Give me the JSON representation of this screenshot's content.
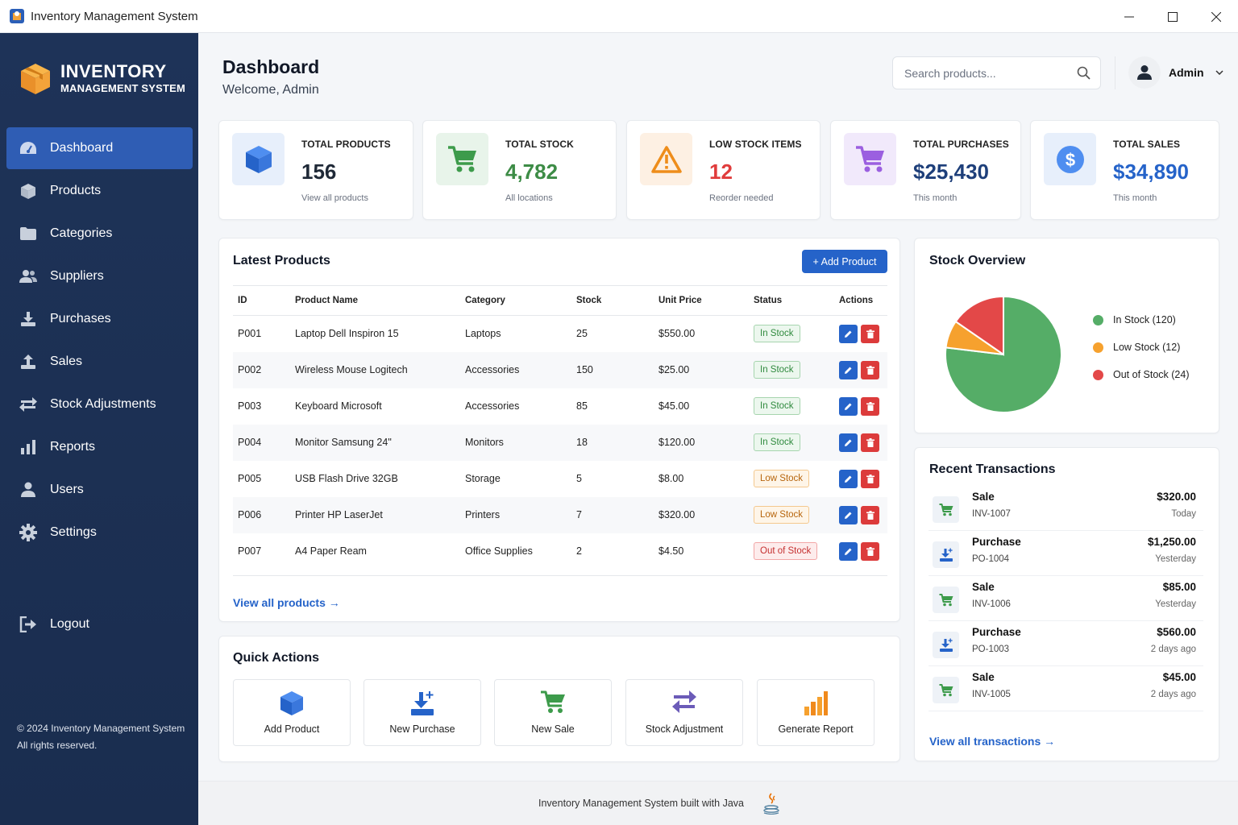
{
  "window": {
    "title": "Inventory Management System"
  },
  "brand": {
    "line1": "INVENTORY",
    "line2": "MANAGEMENT SYSTEM"
  },
  "nav": [
    {
      "label": "Dashboard",
      "icon": "dashboard-icon",
      "active": true
    },
    {
      "label": "Products",
      "icon": "box-icon"
    },
    {
      "label": "Categories",
      "icon": "folder-icon"
    },
    {
      "label": "Suppliers",
      "icon": "users-group-icon"
    },
    {
      "label": "Purchases",
      "icon": "download-icon"
    },
    {
      "label": "Sales",
      "icon": "upload-icon"
    },
    {
      "label": "Stock Adjustments",
      "icon": "exchange-icon"
    },
    {
      "label": "Reports",
      "icon": "bar-chart-icon"
    },
    {
      "label": "Users",
      "icon": "user-icon"
    },
    {
      "label": "Settings",
      "icon": "gear-icon"
    }
  ],
  "logout": {
    "label": "Logout"
  },
  "copyright": {
    "line1": "© 2024 Inventory Management System",
    "line2": "All rights reserved."
  },
  "header": {
    "title": "Dashboard",
    "subtitle": "Welcome, Admin",
    "search_placeholder": "Search products...",
    "user": "Admin"
  },
  "stats": [
    {
      "label": "TOTAL PRODUCTS",
      "value": "156",
      "note": "View all products",
      "color": "#1f2937",
      "bg": "#e7effb",
      "icon": "box-icon"
    },
    {
      "label": "TOTAL STOCK",
      "value": "4,782",
      "note": "All locations",
      "color": "#3d8c46",
      "bg": "#e8f4ea",
      "icon": "cart-icon"
    },
    {
      "label": "LOW STOCK ITEMS",
      "value": "12",
      "note": "Reorder needed",
      "color": "#e03c3c",
      "bg": "#fdf0e3",
      "icon": "warning-icon"
    },
    {
      "label": "TOTAL PURCHASES",
      "value": "$25,430",
      "note": "This month",
      "color": "#1e3f7a",
      "bg": "#f1e9fb",
      "icon": "cart-icon"
    },
    {
      "label": "TOTAL SALES",
      "value": "$34,890",
      "note": "This month",
      "color": "#2563c9",
      "bg": "#e7effb",
      "icon": "dollar-icon"
    }
  ],
  "products": {
    "title": "Latest Products",
    "add_label": "+ Add Product",
    "columns": [
      "ID",
      "Product Name",
      "Category",
      "Stock",
      "Unit Price",
      "Status",
      "Actions"
    ],
    "rows": [
      {
        "id": "P001",
        "name": "Laptop Dell Inspiron 15",
        "category": "Laptops",
        "stock": "25",
        "price": "$550.00",
        "status": "In Stock",
        "kind": "in"
      },
      {
        "id": "P002",
        "name": "Wireless Mouse Logitech",
        "category": "Accessories",
        "stock": "150",
        "price": "$25.00",
        "status": "In Stock",
        "kind": "in"
      },
      {
        "id": "P003",
        "name": "Keyboard Microsoft",
        "category": "Accessories",
        "stock": "85",
        "price": "$45.00",
        "status": "In Stock",
        "kind": "in"
      },
      {
        "id": "P004",
        "name": "Monitor Samsung 24\"",
        "category": "Monitors",
        "stock": "18",
        "price": "$120.00",
        "status": "In Stock",
        "kind": "in"
      },
      {
        "id": "P005",
        "name": "USB Flash Drive 32GB",
        "category": "Storage",
        "stock": "5",
        "price": "$8.00",
        "status": "Low Stock",
        "kind": "low"
      },
      {
        "id": "P006",
        "name": "Printer HP LaserJet",
        "category": "Printers",
        "stock": "7",
        "price": "$320.00",
        "status": "Low Stock",
        "kind": "low"
      },
      {
        "id": "P007",
        "name": "A4 Paper Ream",
        "category": "Office Supplies",
        "stock": "2",
        "price": "$4.50",
        "status": "Out of Stock",
        "kind": "out"
      }
    ],
    "view_all": "View all products →"
  },
  "chart_data": {
    "type": "pie",
    "title": "Stock Overview",
    "categories": [
      "In Stock (120)",
      "Low Stock (12)",
      "Out of Stock (24)"
    ],
    "values": [
      120,
      12,
      24
    ],
    "colors": [
      "#55ad67",
      "#f6a12e",
      "#e34848"
    ],
    "legend": "right"
  },
  "stock_overview": {
    "title": "Stock Overview"
  },
  "transactions": {
    "title": "Recent Transactions",
    "items": [
      {
        "type": "Sale",
        "ref": "INV-1007",
        "amount": "$320.00",
        "when": "Today",
        "icon": "cart-icon"
      },
      {
        "type": "Purchase",
        "ref": "PO-1004",
        "amount": "$1,250.00",
        "when": "Yesterday",
        "icon": "download-icon"
      },
      {
        "type": "Sale",
        "ref": "INV-1006",
        "amount": "$85.00",
        "when": "Yesterday",
        "icon": "cart-icon"
      },
      {
        "type": "Purchase",
        "ref": "PO-1003",
        "amount": "$560.00",
        "when": "2 days ago",
        "icon": "download-icon"
      },
      {
        "type": "Sale",
        "ref": "INV-1005",
        "amount": "$45.00",
        "when": "2 days ago",
        "icon": "cart-icon"
      }
    ],
    "view_all": "View all transactions →"
  },
  "quick_actions": {
    "title": "Quick Actions",
    "items": [
      {
        "label": "Add Product",
        "icon": "box-icon"
      },
      {
        "label": "New Purchase",
        "icon": "download-icon"
      },
      {
        "label": "New Sale",
        "icon": "cart-icon"
      },
      {
        "label": "Stock Adjustment",
        "icon": "exchange-icon"
      },
      {
        "label": "Generate Report",
        "icon": "bar-chart-icon"
      }
    ]
  },
  "footer": {
    "text": "Inventory Management System built with Java"
  }
}
